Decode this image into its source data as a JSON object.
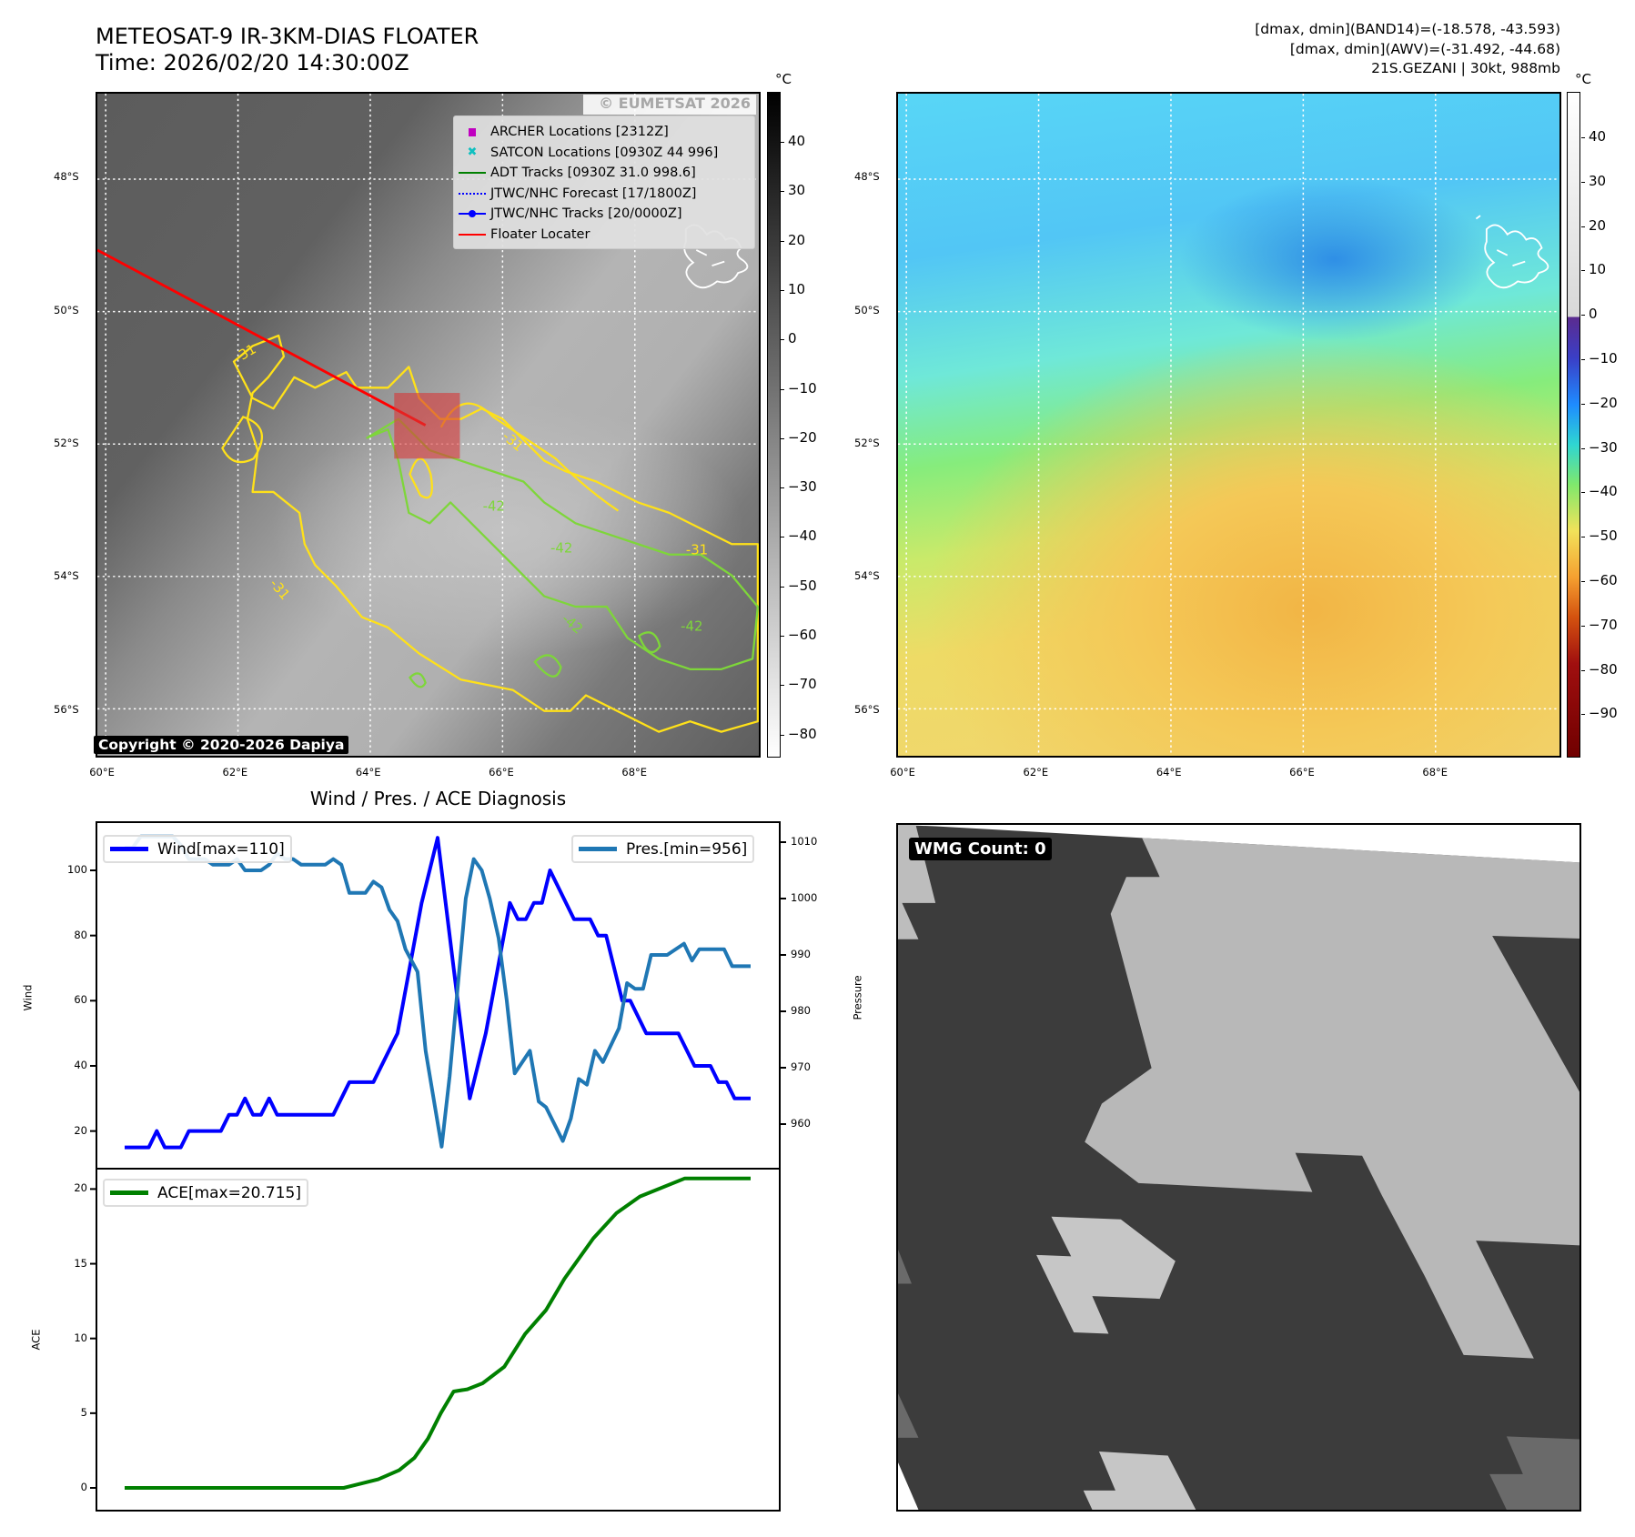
{
  "header": {
    "title": "METEOSAT-9 IR-3KM-DIAS FLOATER",
    "time": "Time: 2026/02/20 14:30:00Z",
    "band14_range": "[dmax, dmin](BAND14)=(-18.578, -43.593)",
    "awv_range": "[dmax, dmin](AWV)=(-31.492, -44.68)",
    "storm": "21S.GEZANI | 30kt, 988mb"
  },
  "maps": {
    "lat_labels": [
      "48°S",
      "50°S",
      "52°S",
      "54°S",
      "56°S"
    ],
    "lat_values": [
      48,
      50,
      52,
      54,
      56
    ],
    "lon_labels": [
      "60°E",
      "62°E",
      "64°E",
      "66°E",
      "68°E"
    ],
    "lon_values": [
      60,
      62,
      64,
      66,
      68
    ],
    "watermark": "© EUMETSAT 2026",
    "copyright": "Copyright © 2020-2026 Dapiya",
    "contour_labels": [
      "-31",
      "-31",
      "-31",
      "-31",
      "-42",
      "-42",
      "-42",
      "-42"
    ],
    "legend": [
      {
        "label": "ARCHER Locations [2312Z]",
        "icon": "square-marker",
        "color": "#c000c0"
      },
      {
        "label": "SATCON Locations [0930Z 44 996]",
        "icon": "x-marker",
        "color": "#10c0c0"
      },
      {
        "label": "ADT Tracks [0930Z 31.0 998.6]",
        "icon": "solid-line",
        "color": "#008000"
      },
      {
        "label": "JTWC/NHC Forecast [17/1800Z]",
        "icon": "dotted-line",
        "color": "#0000ff"
      },
      {
        "label": "JTWC/NHC Tracks [20/0000Z]",
        "icon": "line-dot",
        "color": "#0000ff"
      },
      {
        "label": "Floater Locater",
        "icon": "solid-line",
        "color": "#ff0000"
      }
    ]
  },
  "colorbars": {
    "unit": "°C",
    "left_ticks": [
      "40",
      "30",
      "20",
      "10",
      "0",
      "−10",
      "−20",
      "−30",
      "−40",
      "−50",
      "−60",
      "−70",
      "−80"
    ],
    "left_values": [
      40,
      30,
      20,
      10,
      0,
      -10,
      -20,
      -30,
      -40,
      -50,
      -60,
      -70,
      -80
    ],
    "right_ticks": [
      "40",
      "30",
      "20",
      "10",
      "0",
      "−10",
      "−20",
      "−30",
      "−40",
      "−50",
      "−60",
      "−70",
      "−80",
      "−90"
    ],
    "right_values": [
      40,
      30,
      20,
      10,
      0,
      -10,
      -20,
      -30,
      -40,
      -50,
      -60,
      -70,
      -80,
      -90
    ]
  },
  "wmg": {
    "label": "WMG Count: 0"
  },
  "chart_data": [
    {
      "type": "line",
      "title": "Wind / Pres. / ACE Diagnosis",
      "ylabel": "Wind",
      "y2label": "Pressure",
      "x_range": [
        0,
        78
      ],
      "ylim": [
        11,
        113
      ],
      "y2lim": [
        953,
        1015
      ],
      "yticks": [
        20,
        40,
        60,
        80,
        100
      ],
      "y2ticks": [
        960,
        970,
        980,
        990,
        1000,
        1010
      ],
      "series": [
        {
          "name": "Wind[max=110]",
          "color": "#0000ff",
          "axis": "left",
          "points": [
            [
              0,
              15
            ],
            [
              3,
              15
            ],
            [
              4,
              20
            ],
            [
              5,
              15
            ],
            [
              7,
              15
            ],
            [
              8,
              20
            ],
            [
              12,
              20
            ],
            [
              13,
              25
            ],
            [
              14,
              25
            ],
            [
              15,
              30
            ],
            [
              16,
              25
            ],
            [
              17,
              25
            ],
            [
              18,
              30
            ],
            [
              19,
              25
            ],
            [
              26,
              25
            ],
            [
              28,
              35
            ],
            [
              31,
              35
            ],
            [
              34,
              50
            ],
            [
              37,
              90
            ],
            [
              39,
              110
            ],
            [
              41,
              70
            ],
            [
              43,
              30
            ],
            [
              45,
              50
            ],
            [
              48,
              90
            ],
            [
              49,
              85
            ],
            [
              50,
              85
            ],
            [
              51,
              90
            ],
            [
              52,
              90
            ],
            [
              53,
              100
            ],
            [
              56,
              85
            ],
            [
              58,
              85
            ],
            [
              59,
              80
            ],
            [
              60,
              80
            ],
            [
              62,
              60
            ],
            [
              63,
              60
            ],
            [
              65,
              50
            ],
            [
              69,
              50
            ],
            [
              71,
              40
            ],
            [
              73,
              40
            ],
            [
              74,
              35
            ],
            [
              75,
              35
            ],
            [
              76,
              30
            ],
            [
              78,
              30
            ]
          ]
        },
        {
          "name": "Pres.[min=956]",
          "color": "#1f77b4",
          "axis": "right",
          "points": [
            [
              0,
              1009
            ],
            [
              1,
              1009
            ],
            [
              2,
              1011
            ],
            [
              6,
              1011
            ],
            [
              7,
              1009.5
            ],
            [
              8,
              1007
            ],
            [
              10,
              1007
            ],
            [
              11,
              1006
            ],
            [
              13,
              1006
            ],
            [
              14,
              1007
            ],
            [
              15,
              1005
            ],
            [
              17,
              1005
            ],
            [
              18,
              1006
            ],
            [
              19,
              1008
            ],
            [
              20,
              1007
            ],
            [
              21,
              1007
            ],
            [
              22,
              1006
            ],
            [
              25,
              1006
            ],
            [
              26,
              1007
            ],
            [
              27,
              1006
            ],
            [
              28,
              1001
            ],
            [
              30,
              1001
            ],
            [
              31,
              1003
            ],
            [
              32,
              1002
            ],
            [
              33,
              998
            ],
            [
              34,
              996
            ],
            [
              35,
              991
            ],
            [
              36.5,
              987
            ],
            [
              37.5,
              973
            ],
            [
              39.5,
              956
            ],
            [
              40.5,
              968.5
            ],
            [
              42.5,
              1000
            ],
            [
              43.5,
              1007
            ],
            [
              44.5,
              1005
            ],
            [
              45.5,
              1000
            ],
            [
              46.6,
              993
            ],
            [
              47.6,
              982
            ],
            [
              48.6,
              969
            ],
            [
              50.5,
              973
            ],
            [
              51.6,
              964
            ],
            [
              52.5,
              963
            ],
            [
              54.6,
              957
            ],
            [
              55.6,
              961
            ],
            [
              56.6,
              968
            ],
            [
              57.6,
              967
            ],
            [
              58.6,
              973
            ],
            [
              59.6,
              971
            ],
            [
              61.6,
              977
            ],
            [
              62.6,
              985
            ],
            [
              63.6,
              984
            ],
            [
              64.6,
              984
            ],
            [
              65.6,
              990
            ],
            [
              67.6,
              990
            ],
            [
              69.7,
              992
            ],
            [
              70.7,
              989
            ],
            [
              71.6,
              991
            ],
            [
              74.7,
              991
            ],
            [
              75.7,
              988
            ],
            [
              78,
              988
            ]
          ]
        }
      ]
    },
    {
      "type": "line",
      "ylabel": "ACE",
      "x_range": [
        0,
        78
      ],
      "ylim": [
        -1.5,
        21.6
      ],
      "yticks": [
        0,
        5,
        10,
        15,
        20
      ],
      "series": [
        {
          "name": "ACE[max=20.715]",
          "color": "#008000",
          "points": [
            [
              0,
              0
            ],
            [
              27.3,
              0
            ],
            [
              31.6,
              0.57
            ],
            [
              34.2,
              1.18
            ],
            [
              36.1,
              2
            ],
            [
              37.8,
              3.3
            ],
            [
              39.4,
              5
            ],
            [
              41,
              6.45
            ],
            [
              42.7,
              6.6
            ],
            [
              44.6,
              7
            ],
            [
              47.3,
              8.1
            ],
            [
              49.9,
              10.3
            ],
            [
              52.5,
              11.9
            ],
            [
              54.8,
              14
            ],
            [
              58.4,
              16.7
            ],
            [
              61.3,
              18.4
            ],
            [
              64.2,
              19.5
            ],
            [
              69.8,
              20.715
            ],
            [
              78,
              20.715
            ]
          ]
        }
      ]
    }
  ]
}
